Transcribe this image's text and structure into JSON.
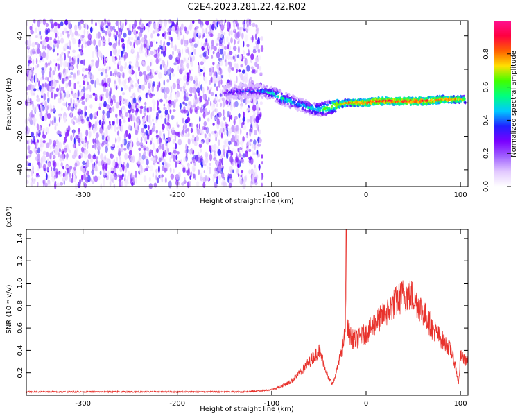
{
  "page": {
    "title": "C2E4.2023.281.22.42.R02"
  },
  "colors": {
    "background": "#ffffff",
    "axis": "#000000",
    "snr_line": "#e8322c",
    "colormap": [
      "#ffffff",
      "#e2c8ff",
      "#a060ff",
      "#7a00ff",
      "#2020ff",
      "#00c8ff",
      "#00ff80",
      "#40ff00",
      "#ffe000",
      "#ff6000",
      "#ff0040",
      "#ff1090"
    ]
  },
  "chart_data": [
    {
      "type": "heatmap",
      "name": "spectrogram",
      "xlabel": "Height of straight line (km)",
      "ylabel": "Frequency (Hz)",
      "xlim": [
        -360,
        108
      ],
      "ylim": [
        -50,
        49
      ],
      "xticks": [
        -300,
        -200,
        -100,
        0,
        100
      ],
      "xtick_labels": [
        "-300",
        "-200",
        "-100",
        "0",
        "100"
      ],
      "yticks": [
        -40,
        -20,
        0,
        20,
        40
      ],
      "ytick_labels": [
        "-40",
        "-20",
        "0",
        "20",
        "40"
      ],
      "noise_region_x": [
        -360,
        -110
      ],
      "ridge": {
        "x": [
          -150,
          -130,
          -110,
          -100,
          -90,
          -80,
          -70,
          -60,
          -50,
          -40,
          -30,
          -20,
          -10,
          0,
          10,
          20,
          40,
          60,
          80,
          95,
          105
        ],
        "y": [
          6,
          7,
          7,
          6,
          3,
          1,
          -1,
          -3,
          -4,
          -3,
          -1,
          0,
          0,
          0,
          1,
          1,
          1,
          1,
          2,
          2,
          2
        ],
        "amplitude": [
          0.3,
          0.35,
          0.4,
          0.5,
          0.55,
          0.5,
          0.45,
          0.5,
          0.55,
          0.65,
          0.75,
          0.8,
          0.85,
          0.85,
          0.9,
          0.9,
          0.9,
          0.9,
          0.85,
          0.8,
          0.7
        ]
      },
      "colorbar": {
        "label": "Normalized spectral amplitude",
        "range": [
          0,
          1
        ],
        "ticks": [
          0.0,
          0.2,
          0.4,
          0.6,
          0.8
        ],
        "tick_labels": [
          "0.0",
          "0.2",
          "0.4",
          "0.6",
          "0.8"
        ]
      },
      "grid": false
    },
    {
      "type": "line",
      "name": "snr",
      "xlabel": "Height of straight line (km)",
      "ylabel": "SNR (10 * v/v)",
      "scale_label": "(x10⁴)",
      "xlim": [
        -360,
        108
      ],
      "ylim": [
        0,
        1.48
      ],
      "xticks": [
        -300,
        -200,
        -100,
        0,
        100
      ],
      "xtick_labels": [
        "-300",
        "-200",
        "-100",
        "0",
        "100"
      ],
      "yticks": [
        0.2,
        0.4,
        0.6,
        0.8,
        1.0,
        1.2,
        1.4
      ],
      "ytick_labels": [
        "0.2",
        "0.4",
        "0.6",
        "0.8",
        "1.0",
        "1.2",
        "1.4"
      ],
      "series": [
        {
          "x": [
            -360,
            -300,
            -200,
            -130,
            -110,
            -100,
            -90,
            -80,
            -70,
            -60,
            -55,
            -50,
            -45,
            -40,
            -35,
            -30,
            -25,
            -22,
            -21,
            -20,
            -15,
            -10,
            0,
            10,
            20,
            30,
            40,
            50,
            60,
            70,
            80,
            90,
            95,
            98,
            100,
            108
          ],
          "y": [
            0.03,
            0.03,
            0.03,
            0.03,
            0.04,
            0.05,
            0.08,
            0.12,
            0.2,
            0.3,
            0.35,
            0.4,
            0.3,
            0.15,
            0.1,
            0.25,
            0.45,
            0.55,
            1.48,
            0.6,
            0.5,
            0.5,
            0.55,
            0.65,
            0.72,
            0.82,
            0.9,
            0.88,
            0.75,
            0.6,
            0.5,
            0.4,
            0.25,
            0.1,
            0.35,
            0.3
          ]
        }
      ],
      "grid": false
    }
  ]
}
